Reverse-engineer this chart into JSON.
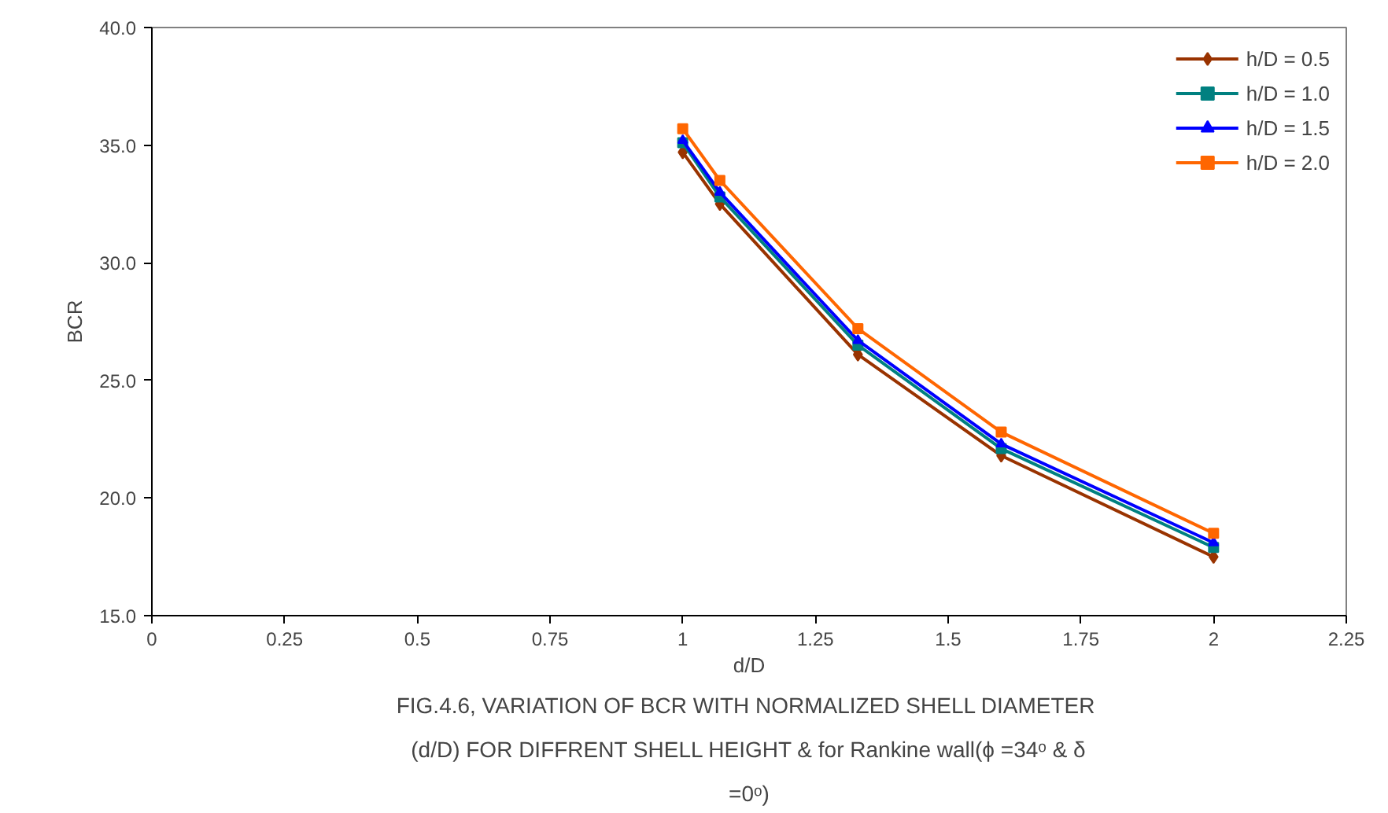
{
  "chart_data": {
    "type": "line",
    "title": "FIG.4.6,  VARIATION OF BCR WITH NORMALIZED SHELL DIAMETER (d/D) FOR DIFFRENT SHELL HEIGHT & for Rankine wall(ϕ =34ᵒ & δ =0ᵒ)",
    "xlabel": "d/D",
    "ylabel": "BCR",
    "x": [
      1,
      1.07,
      1.33,
      1.6,
      2
    ],
    "series": [
      {
        "name": "h/D = 0.5",
        "color": "#993300",
        "marker": "diamond",
        "values": [
          34.7,
          32.5,
          26.1,
          21.8,
          17.5
        ]
      },
      {
        "name": "h/D = 1.0",
        "color": "#008080",
        "marker": "square",
        "values": [
          35.1,
          32.8,
          26.5,
          22.1,
          17.9
        ]
      },
      {
        "name": "h/D = 1.5",
        "color": "#0000ff",
        "marker": "triangle",
        "values": [
          35.2,
          33.0,
          26.7,
          22.3,
          18.1
        ]
      },
      {
        "name": "h/D = 2.0",
        "color": "#ff6600",
        "marker": "square",
        "values": [
          35.7,
          33.5,
          27.2,
          22.8,
          18.5
        ]
      }
    ],
    "xlim": [
      0,
      2.25
    ],
    "xticks": [
      0,
      0.25,
      0.5,
      0.75,
      1,
      1.25,
      1.5,
      1.75,
      2,
      2.25
    ],
    "ylim": [
      15,
      40
    ],
    "yticks": [
      {
        "value": 15,
        "label": "15.0"
      },
      {
        "value": 20,
        "label": "20.0"
      },
      {
        "value": 25,
        "label": "25.0"
      },
      {
        "value": 30,
        "label": "30.0"
      },
      {
        "value": 35,
        "label": "35.0"
      },
      {
        "value": 40,
        "label": "40.0"
      }
    ],
    "grid": false,
    "legend": "top right",
    "line_style": "solid"
  }
}
